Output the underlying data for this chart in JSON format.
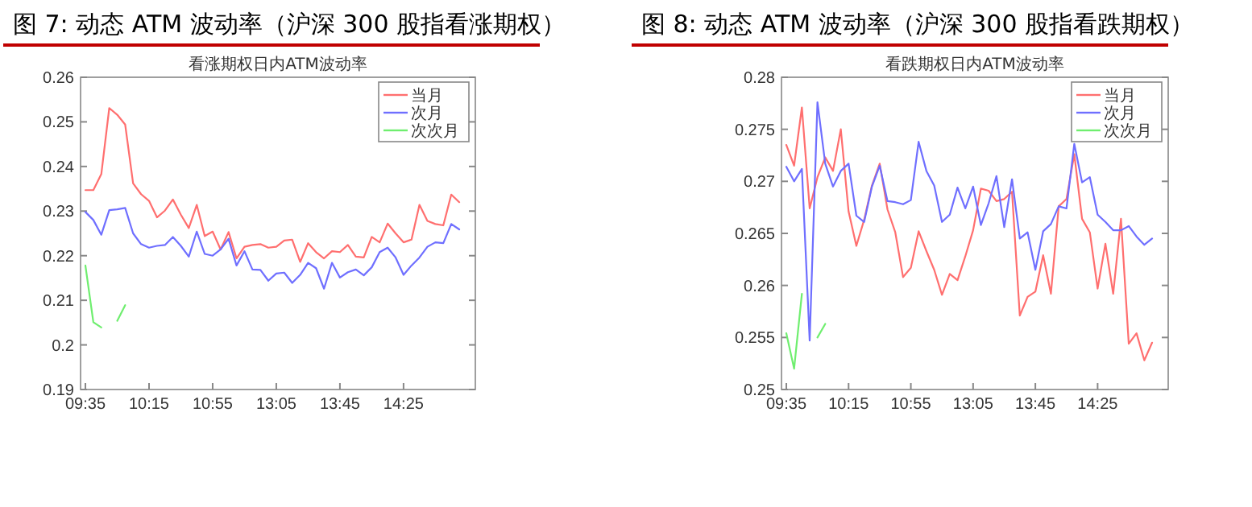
{
  "chart_data": [
    {
      "type": "line",
      "title": "图 7: 动态 ATM 波动率（沪深 300 股指看涨期权）",
      "subtitle": "看涨期权日内ATM波动率",
      "categories": [
        "09:35",
        null,
        null,
        null,
        null,
        null,
        null,
        null,
        "10:15",
        null,
        null,
        null,
        null,
        null,
        null,
        null,
        "10:55",
        null,
        null,
        null,
        null,
        null,
        null,
        null,
        "13:05",
        null,
        null,
        null,
        null,
        null,
        null,
        null,
        "13:45",
        null,
        null,
        null,
        null,
        null,
        null,
        null,
        "14:25",
        null,
        null,
        null,
        null,
        null,
        null,
        null
      ],
      "series": [
        {
          "name": "当月",
          "color": "#ff6f6f",
          "values": [
            0.2347,
            0.2347,
            0.2383,
            0.2531,
            0.2516,
            0.2494,
            0.2362,
            0.2338,
            0.2323,
            0.2286,
            0.2301,
            0.2326,
            0.2292,
            0.2262,
            0.2314,
            0.2244,
            0.2254,
            0.2214,
            0.2253,
            0.2194,
            0.222,
            0.2224,
            0.2226,
            0.2218,
            0.222,
            0.2234,
            0.2236,
            0.2186,
            0.2228,
            0.2208,
            0.2194,
            0.221,
            0.2208,
            0.2224,
            0.2198,
            0.2196,
            0.2242,
            0.223,
            0.2272,
            0.225,
            0.223,
            0.2236,
            0.2314,
            0.2278,
            0.2271,
            0.2268,
            0.2337,
            0.232
          ]
        },
        {
          "name": "次月",
          "color": "#6f6fff",
          "values": [
            0.2298,
            0.228,
            0.2247,
            0.2302,
            0.2304,
            0.2307,
            0.225,
            0.2226,
            0.2218,
            0.2222,
            0.2224,
            0.2242,
            0.2222,
            0.2198,
            0.2254,
            0.2204,
            0.22,
            0.2214,
            0.2238,
            0.2178,
            0.221,
            0.2169,
            0.2168,
            0.2144,
            0.216,
            0.2162,
            0.2139,
            0.2157,
            0.2184,
            0.2172,
            0.2126,
            0.2184,
            0.2151,
            0.2163,
            0.2169,
            0.2156,
            0.2174,
            0.2208,
            0.2218,
            0.2196,
            0.2157,
            0.2178,
            0.2196,
            0.222,
            0.223,
            0.2228,
            0.2271,
            0.2259
          ]
        },
        {
          "name": "次次月",
          "color": "#6fee6f",
          "values": [
            0.2178,
            0.2051,
            0.2039,
            null,
            0.2054,
            0.2089,
            null,
            null,
            null,
            null,
            null,
            null,
            null,
            null,
            null,
            null,
            null,
            null,
            null,
            null,
            null,
            null,
            null,
            null,
            null,
            null,
            null,
            null,
            null,
            null,
            null,
            null,
            null,
            null,
            null,
            null,
            null,
            null,
            null,
            null,
            null,
            null,
            null,
            null,
            null,
            null,
            null,
            null
          ]
        }
      ],
      "ylim": [
        0.19,
        0.26
      ],
      "yticks": [
        0.19,
        0.2,
        0.21,
        0.22,
        0.23,
        0.24,
        0.25,
        0.26
      ],
      "legend": "top right",
      "grid": false
    },
    {
      "type": "line",
      "title": "图 8: 动态 ATM 波动率（沪深 300 股指看跌期权）",
      "subtitle": "看跌期权日内ATM波动率",
      "categories": [
        "09:35",
        null,
        null,
        null,
        null,
        null,
        null,
        null,
        "10:15",
        null,
        null,
        null,
        null,
        null,
        null,
        null,
        "10:55",
        null,
        null,
        null,
        null,
        null,
        null,
        null,
        "13:05",
        null,
        null,
        null,
        null,
        null,
        null,
        null,
        "13:45",
        null,
        null,
        null,
        null,
        null,
        null,
        null,
        "14:25",
        null,
        null,
        null,
        null,
        null,
        null,
        null
      ],
      "series": [
        {
          "name": "当月",
          "color": "#ff6f6f",
          "values": [
            0.2735,
            0.2715,
            0.2771,
            0.2674,
            0.2704,
            0.2723,
            0.271,
            0.275,
            0.2671,
            0.2638,
            0.2663,
            0.2696,
            0.2717,
            0.2673,
            0.2651,
            0.2608,
            0.2617,
            0.2652,
            0.2633,
            0.2615,
            0.2591,
            0.2611,
            0.2605,
            0.2628,
            0.2653,
            0.2693,
            0.2691,
            0.2681,
            0.2683,
            0.269,
            0.2571,
            0.2589,
            0.2594,
            0.2629,
            0.2592,
            0.2676,
            0.2683,
            0.2726,
            0.2664,
            0.2651,
            0.2597,
            0.264,
            0.2592,
            0.2664,
            0.2544,
            0.2554,
            0.2528,
            0.2545
          ]
        },
        {
          "name": "次月",
          "color": "#6f6fff",
          "values": [
            0.2714,
            0.27,
            0.2712,
            0.2547,
            0.2776,
            0.2717,
            0.2695,
            0.271,
            0.2717,
            0.2667,
            0.2661,
            0.2695,
            0.2715,
            0.2681,
            0.268,
            0.2678,
            0.2682,
            0.2738,
            0.271,
            0.2696,
            0.2661,
            0.2668,
            0.2694,
            0.2674,
            0.2695,
            0.2658,
            0.2679,
            0.2705,
            0.2656,
            0.2702,
            0.2645,
            0.2651,
            0.2615,
            0.2652,
            0.2659,
            0.2676,
            0.2674,
            0.2736,
            0.2699,
            0.2704,
            0.2668,
            0.2661,
            0.2653,
            0.2653,
            0.2657,
            0.2647,
            0.2639,
            0.2645
          ]
        },
        {
          "name": "次次月",
          "color": "#6fee6f",
          "values": [
            0.2554,
            0.252,
            0.2592,
            null,
            0.255,
            0.2563,
            null,
            null,
            null,
            null,
            null,
            null,
            null,
            null,
            null,
            null,
            null,
            null,
            null,
            null,
            null,
            null,
            null,
            null,
            null,
            null,
            null,
            null,
            null,
            null,
            null,
            null,
            null,
            null,
            null,
            null,
            null,
            null,
            null,
            null,
            null,
            null,
            null,
            null,
            null,
            null,
            null,
            null
          ]
        }
      ],
      "ylim": [
        0.25,
        0.28
      ],
      "yticks": [
        0.25,
        0.255,
        0.26,
        0.265,
        0.27,
        0.275,
        0.28
      ],
      "legend": "top right",
      "grid": false
    }
  ]
}
